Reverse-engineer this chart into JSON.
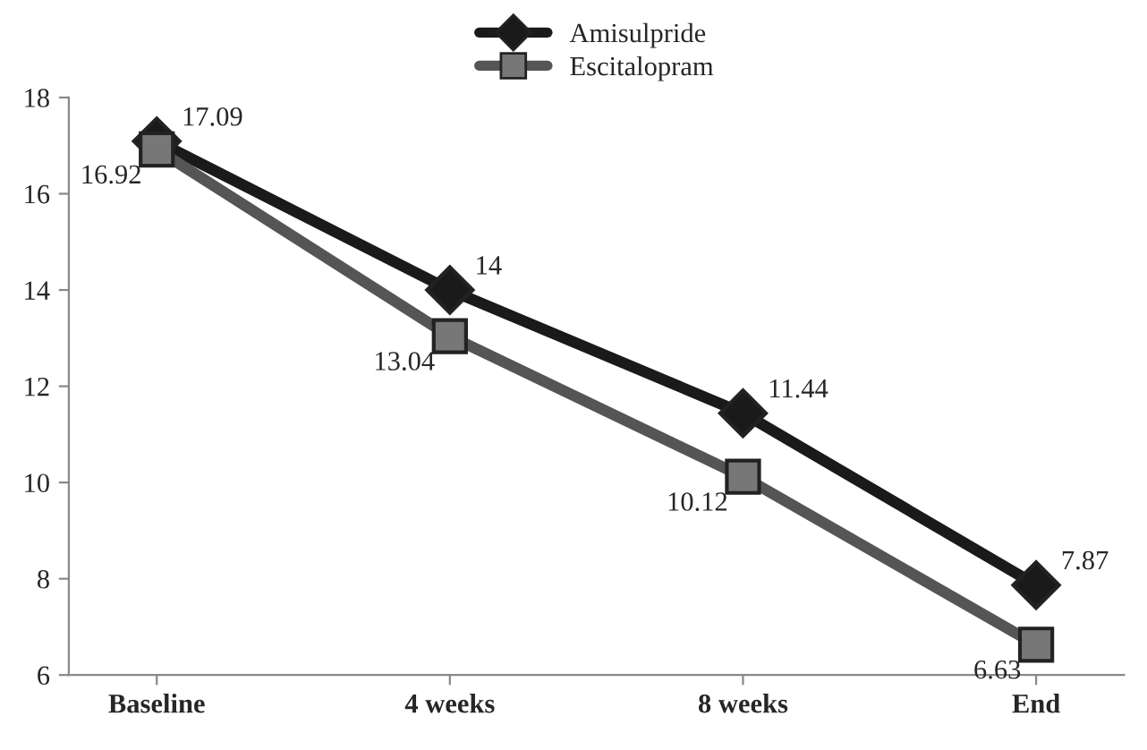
{
  "chart_data": {
    "type": "line",
    "categories": [
      "Baseline",
      "4 weeks",
      "8 weeks",
      "End"
    ],
    "series": [
      {
        "name": "Amisulpride",
        "color": "#1a1a1a",
        "marker": "diamond",
        "values": [
          17.09,
          14,
          11.44,
          7.87
        ]
      },
      {
        "name": "Escitalopram",
        "color": "#555555",
        "marker": "square",
        "values": [
          16.92,
          13.04,
          10.12,
          6.63
        ]
      }
    ],
    "ylim": [
      6,
      18
    ],
    "yticks": [
      6,
      8,
      10,
      12,
      14,
      16,
      18
    ],
    "grid": false,
    "legend": "top",
    "data_labels": true,
    "line_style": "solid"
  }
}
